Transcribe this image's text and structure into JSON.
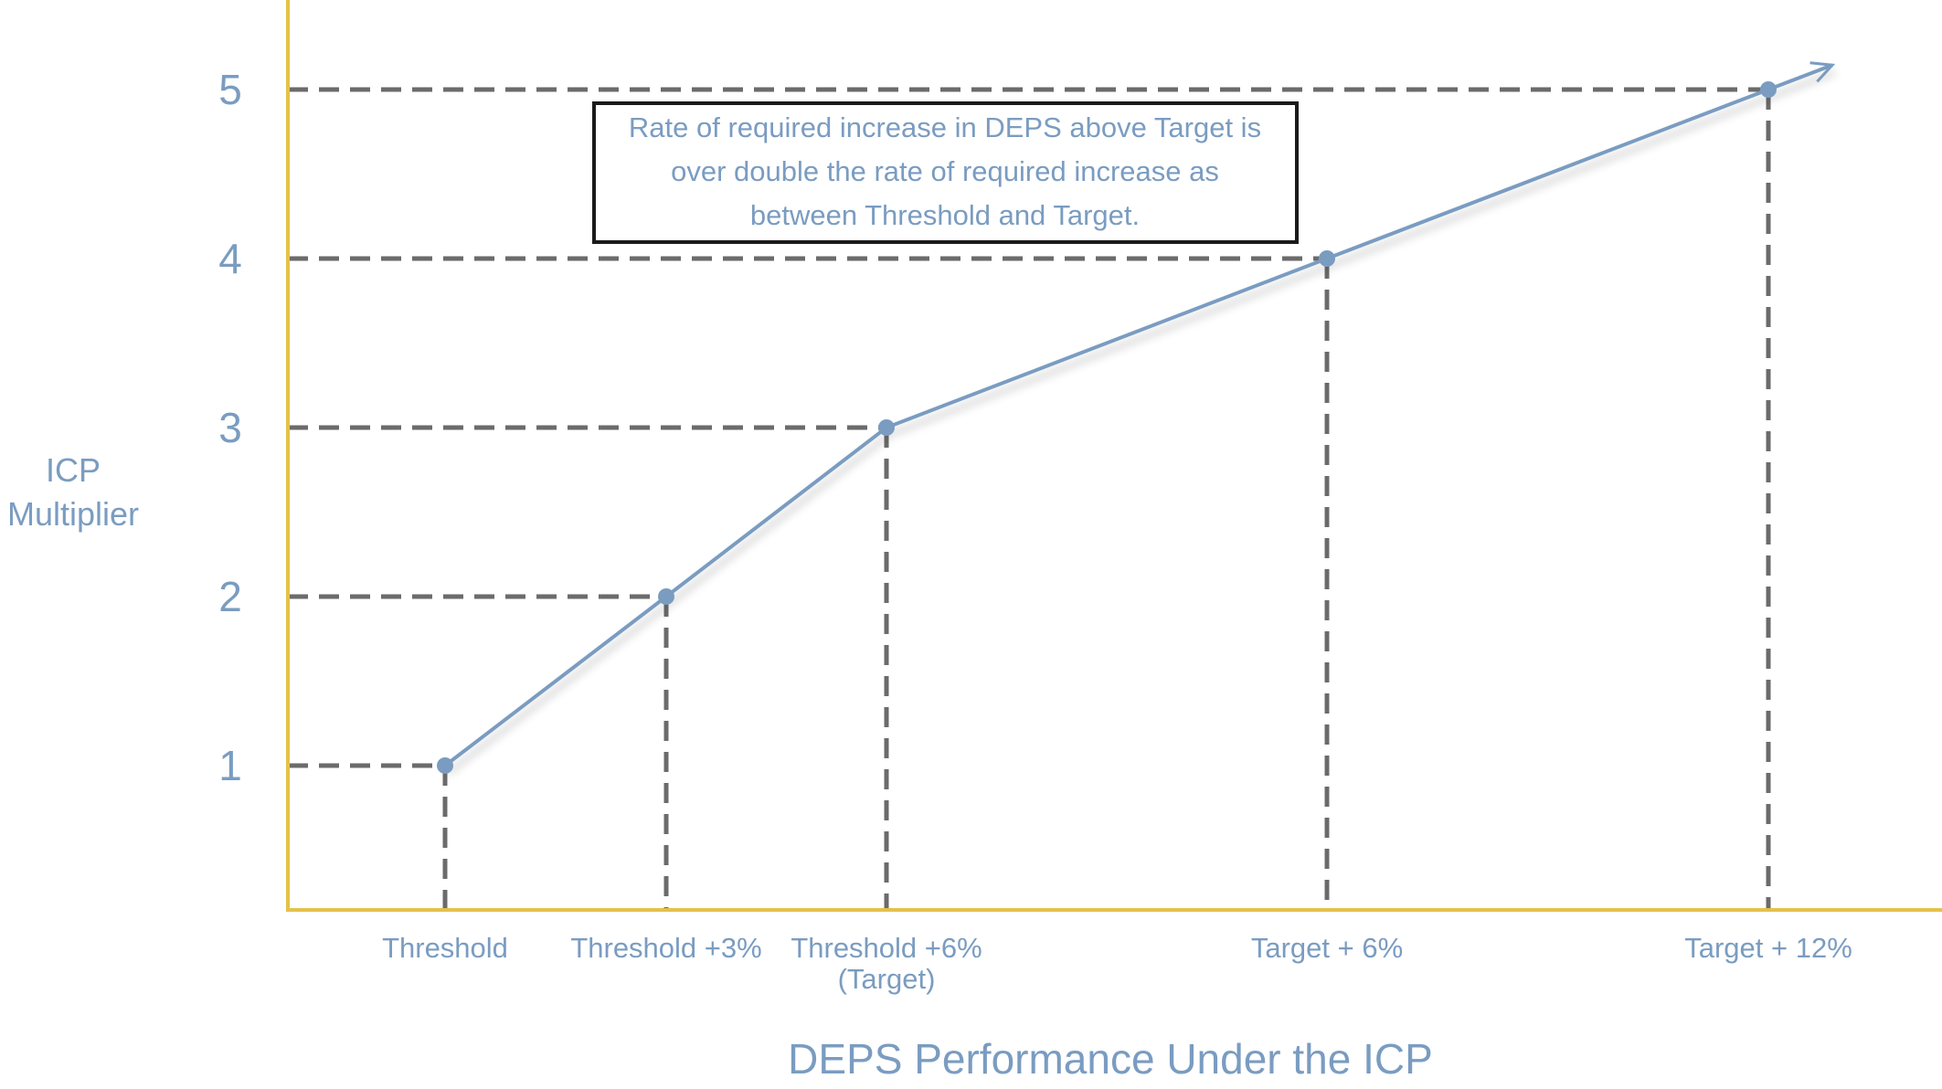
{
  "chart_data": {
    "type": "line",
    "categories": [
      "Threshold",
      "Threshold +3%",
      "Threshold +6%\n(Target)",
      "Target + 6%",
      "Target + 12%"
    ],
    "series": [
      {
        "values": [
          1,
          2,
          3,
          4,
          5
        ]
      }
    ],
    "xlabel": "DEPS Performance Under the ICP",
    "ylabel": "ICP\nMultiplier",
    "yticks": [
      1,
      2,
      3,
      4,
      5
    ],
    "ylim": [
      0.15,
      5.5
    ],
    "grid": false,
    "annotation": "Rate of required increase in DEPS above Target is\nover double the rate of required increase as\nbetween Threshold and Target.",
    "colors": {
      "line": "#7a9cc1",
      "marker": "#7a9cc1",
      "axis": "#e5c149",
      "guides": "#6b6b6b",
      "text": "#7a9cc1",
      "callout_border": "#1a1a1a"
    }
  }
}
